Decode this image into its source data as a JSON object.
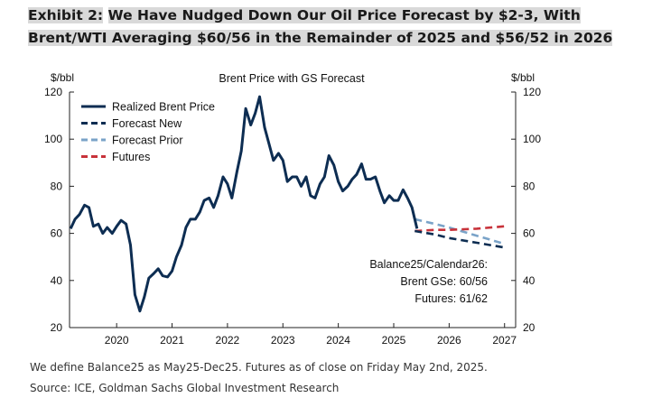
{
  "header": {
    "exhibit_label": "Exhibit 2:",
    "title": "We Have Nudged Down Our Oil Price Forecast by $2-3, With Brent/WTI Averaging $60/56 in the Remainder of 2025 and $56/52 in 2026"
  },
  "chart_data": {
    "type": "line",
    "title": "Brent Price with GS Forecast",
    "ylabel_left": "$/bbl",
    "ylabel_right": "$/bbl",
    "ylim": [
      20,
      120
    ],
    "yticks": [
      20,
      40,
      60,
      80,
      100,
      120
    ],
    "xlim": [
      2019.15,
      2027.2
    ],
    "xticks": [
      2020,
      2021,
      2022,
      2023,
      2024,
      2025,
      2026,
      2027
    ],
    "xtick_labels": [
      "2020",
      "2021",
      "2022",
      "2023",
      "2024",
      "2025",
      "2026",
      "2027"
    ],
    "grid": false,
    "legend_position": "top-left",
    "series": [
      {
        "name": "Realized Brent Price",
        "color": "#0d2d52",
        "style": "solid",
        "points": [
          [
            2019.17,
            62
          ],
          [
            2019.25,
            66
          ],
          [
            2019.33,
            68
          ],
          [
            2019.42,
            72
          ],
          [
            2019.5,
            71
          ],
          [
            2019.58,
            63
          ],
          [
            2019.67,
            64
          ],
          [
            2019.75,
            60
          ],
          [
            2019.83,
            62.5
          ],
          [
            2019.92,
            60
          ],
          [
            2020.0,
            63
          ],
          [
            2020.08,
            65.5
          ],
          [
            2020.17,
            64
          ],
          [
            2020.25,
            55
          ],
          [
            2020.33,
            34
          ],
          [
            2020.42,
            27
          ],
          [
            2020.5,
            33
          ],
          [
            2020.58,
            41
          ],
          [
            2020.67,
            43
          ],
          [
            2020.75,
            45
          ],
          [
            2020.83,
            42
          ],
          [
            2020.92,
            41.5
          ],
          [
            2021.0,
            44
          ],
          [
            2021.08,
            50
          ],
          [
            2021.17,
            55
          ],
          [
            2021.25,
            62.5
          ],
          [
            2021.33,
            66
          ],
          [
            2021.42,
            66
          ],
          [
            2021.5,
            69
          ],
          [
            2021.58,
            74
          ],
          [
            2021.67,
            75
          ],
          [
            2021.75,
            71
          ],
          [
            2021.83,
            76
          ],
          [
            2021.92,
            84
          ],
          [
            2022.0,
            81
          ],
          [
            2022.08,
            75
          ],
          [
            2022.17,
            86
          ],
          [
            2022.25,
            95
          ],
          [
            2022.33,
            113
          ],
          [
            2022.42,
            106
          ],
          [
            2022.5,
            111
          ],
          [
            2022.58,
            118
          ],
          [
            2022.67,
            105
          ],
          [
            2022.75,
            98
          ],
          [
            2022.83,
            91
          ],
          [
            2022.92,
            94
          ],
          [
            2023.0,
            91
          ],
          [
            2023.08,
            82
          ],
          [
            2023.17,
            84
          ],
          [
            2023.25,
            84
          ],
          [
            2023.33,
            80
          ],
          [
            2023.42,
            84
          ],
          [
            2023.5,
            76
          ],
          [
            2023.58,
            75
          ],
          [
            2023.67,
            81
          ],
          [
            2023.75,
            84
          ],
          [
            2023.83,
            93
          ],
          [
            2023.92,
            89
          ],
          [
            2024.0,
            82
          ],
          [
            2024.08,
            78
          ],
          [
            2024.17,
            80
          ],
          [
            2024.25,
            83
          ],
          [
            2024.33,
            85
          ],
          [
            2024.42,
            89.5
          ],
          [
            2024.5,
            83
          ],
          [
            2024.58,
            83
          ],
          [
            2024.67,
            84
          ],
          [
            2024.75,
            78
          ],
          [
            2024.83,
            73
          ],
          [
            2024.92,
            76
          ],
          [
            2025.0,
            74
          ],
          [
            2025.08,
            74
          ],
          [
            2025.17,
            78.5
          ],
          [
            2025.25,
            75
          ],
          [
            2025.33,
            71
          ],
          [
            2025.42,
            62
          ]
        ]
      },
      {
        "name": "Forecast New",
        "color": "#0d2d52",
        "style": "dashed",
        "points": [
          [
            2025.38,
            61
          ],
          [
            2025.75,
            59.5
          ],
          [
            2026.0,
            58
          ],
          [
            2026.5,
            56
          ],
          [
            2027.0,
            54
          ]
        ]
      },
      {
        "name": "Forecast Prior",
        "color": "#7aa3c8",
        "style": "dashed",
        "points": [
          [
            2025.38,
            66
          ],
          [
            2025.75,
            64
          ],
          [
            2026.0,
            62.5
          ],
          [
            2026.5,
            59
          ],
          [
            2027.0,
            55.5
          ]
        ]
      },
      {
        "name": "Futures",
        "color": "#c8323a",
        "style": "dashed",
        "points": [
          [
            2025.38,
            61
          ],
          [
            2025.75,
            61.5
          ],
          [
            2026.0,
            61.5
          ],
          [
            2026.5,
            62
          ],
          [
            2027.0,
            63
          ]
        ]
      }
    ],
    "annotation": {
      "line1": "Balance25/Calendar26:",
      "line2": "Brent GSe: 60/56",
      "line3": "Futures: 61/62"
    }
  },
  "footer": {
    "note": "We define Balance25 as May25-Dec25. Futures as of close on Friday May 2nd, 2025.",
    "source": "Source: ICE, Goldman Sachs Global Investment Research"
  }
}
